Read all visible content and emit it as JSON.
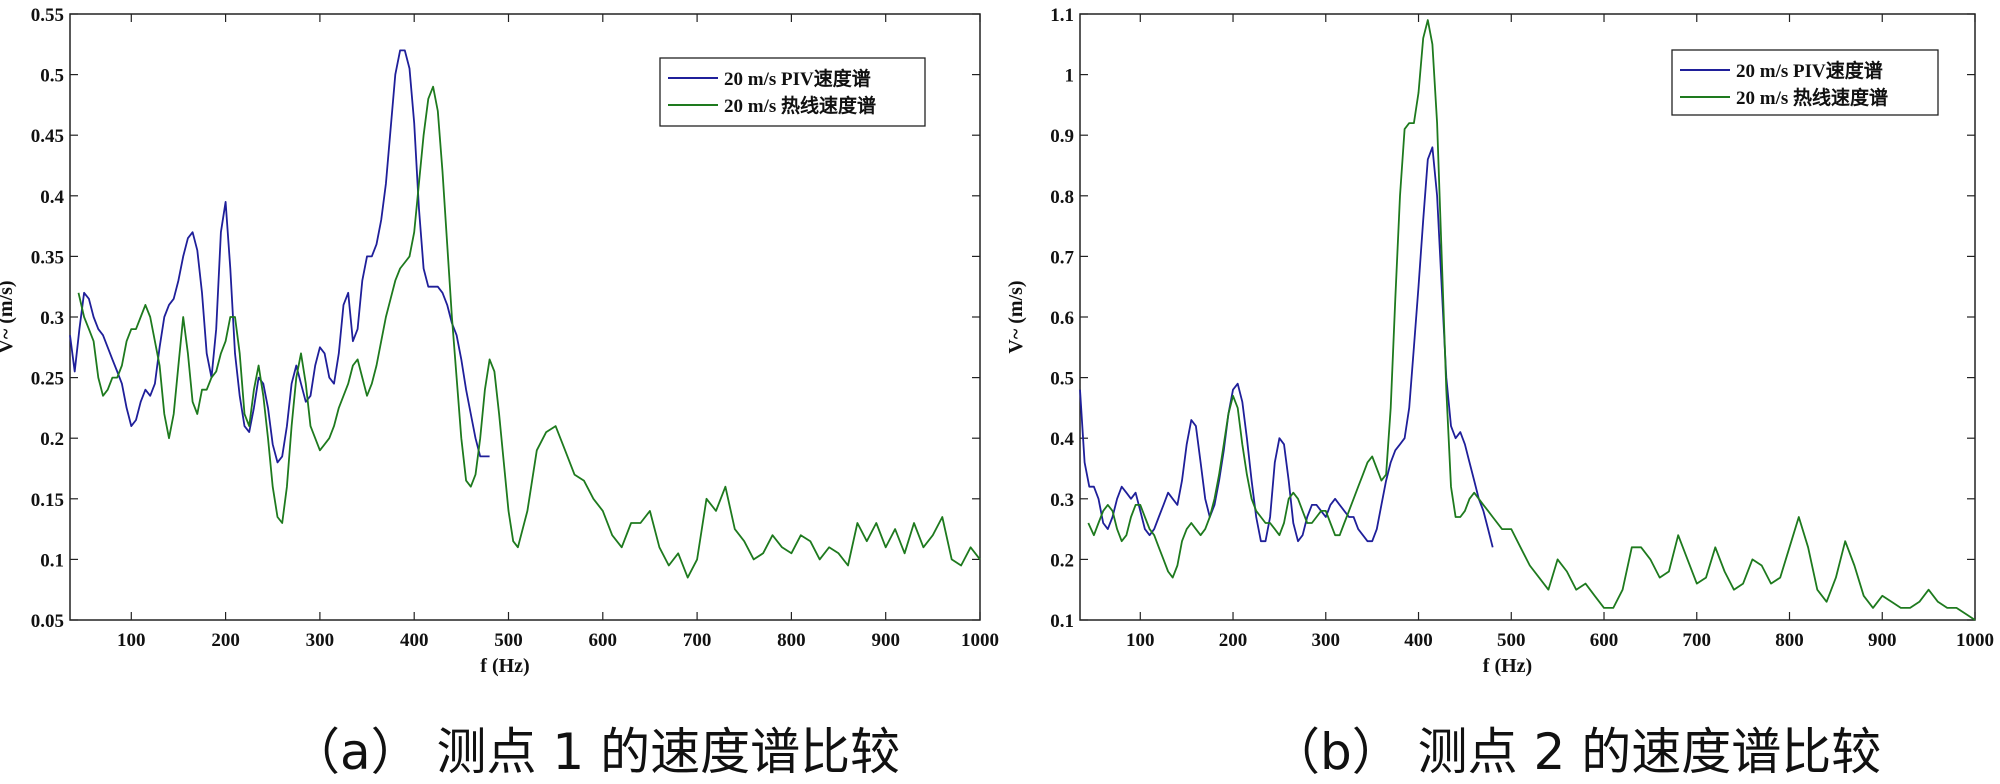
{
  "chart_data": [
    {
      "type": "line",
      "xlabel": "f (Hz)",
      "ylabel": "V~ (m/s)",
      "xlim": [
        35,
        1000
      ],
      "ylim": [
        0.05,
        0.55
      ],
      "xticks": [
        100,
        200,
        300,
        400,
        500,
        600,
        700,
        800,
        900,
        1000
      ],
      "yticks": [
        0.05,
        0.1,
        0.15,
        0.2,
        0.25,
        0.3,
        0.35,
        0.4,
        0.45,
        0.5,
        0.55
      ],
      "legend_position": "top-right",
      "caption": "（a） 测点 1 的速度谱比较",
      "series": [
        {
          "name": "20 m/s PIV速度谱",
          "color": "#1f1f9a",
          "x": [
            35,
            40,
            45,
            50,
            55,
            60,
            65,
            70,
            75,
            80,
            85,
            90,
            95,
            100,
            105,
            110,
            115,
            120,
            125,
            130,
            135,
            140,
            145,
            150,
            155,
            160,
            165,
            170,
            175,
            180,
            185,
            190,
            195,
            200,
            205,
            210,
            215,
            220,
            225,
            230,
            235,
            240,
            245,
            250,
            255,
            260,
            265,
            270,
            275,
            280,
            285,
            290,
            295,
            300,
            305,
            310,
            315,
            320,
            325,
            330,
            335,
            340,
            345,
            350,
            355,
            360,
            365,
            370,
            375,
            380,
            385,
            390,
            395,
            400,
            405,
            410,
            415,
            420,
            425,
            430,
            435,
            440,
            445,
            450,
            455,
            460,
            465,
            470,
            475,
            480
          ],
          "y": [
            0.285,
            0.255,
            0.29,
            0.32,
            0.315,
            0.3,
            0.29,
            0.285,
            0.275,
            0.265,
            0.255,
            0.245,
            0.225,
            0.21,
            0.215,
            0.23,
            0.24,
            0.235,
            0.245,
            0.275,
            0.3,
            0.31,
            0.315,
            0.33,
            0.35,
            0.365,
            0.37,
            0.355,
            0.32,
            0.27,
            0.25,
            0.29,
            0.37,
            0.395,
            0.34,
            0.27,
            0.235,
            0.21,
            0.205,
            0.225,
            0.25,
            0.245,
            0.225,
            0.195,
            0.18,
            0.185,
            0.21,
            0.245,
            0.26,
            0.245,
            0.23,
            0.235,
            0.26,
            0.275,
            0.27,
            0.25,
            0.245,
            0.27,
            0.31,
            0.32,
            0.28,
            0.29,
            0.33,
            0.35,
            0.35,
            0.36,
            0.38,
            0.41,
            0.455,
            0.5,
            0.52,
            0.52,
            0.505,
            0.46,
            0.39,
            0.34,
            0.325,
            0.325,
            0.325,
            0.32,
            0.31,
            0.295,
            0.285,
            0.265,
            0.24,
            0.22,
            0.2,
            0.185,
            0.185,
            0.185
          ]
        },
        {
          "name": "20 m/s 热线速度谱",
          "color": "#1e7a1e",
          "x": [
            44,
            50,
            55,
            60,
            65,
            70,
            75,
            80,
            85,
            90,
            95,
            100,
            105,
            110,
            115,
            120,
            125,
            130,
            135,
            140,
            145,
            150,
            155,
            160,
            165,
            170,
            175,
            180,
            185,
            190,
            195,
            200,
            205,
            210,
            215,
            220,
            225,
            230,
            235,
            240,
            245,
            250,
            255,
            260,
            265,
            270,
            275,
            280,
            285,
            290,
            295,
            300,
            305,
            310,
            315,
            320,
            325,
            330,
            335,
            340,
            345,
            350,
            355,
            360,
            365,
            370,
            375,
            380,
            385,
            390,
            395,
            400,
            405,
            410,
            415,
            420,
            425,
            430,
            435,
            440,
            445,
            450,
            455,
            460,
            465,
            470,
            475,
            480,
            485,
            490,
            495,
            500,
            505,
            510,
            520,
            530,
            540,
            550,
            560,
            570,
            580,
            590,
            600,
            610,
            620,
            630,
            640,
            650,
            660,
            670,
            680,
            690,
            700,
            710,
            720,
            730,
            740,
            750,
            760,
            770,
            780,
            790,
            800,
            810,
            820,
            830,
            840,
            850,
            860,
            870,
            880,
            890,
            900,
            910,
            920,
            930,
            940,
            950,
            960,
            970,
            980,
            990,
            1000
          ],
          "y": [
            0.32,
            0.3,
            0.29,
            0.28,
            0.25,
            0.235,
            0.24,
            0.25,
            0.25,
            0.26,
            0.28,
            0.29,
            0.29,
            0.3,
            0.31,
            0.3,
            0.28,
            0.26,
            0.22,
            0.2,
            0.22,
            0.26,
            0.3,
            0.27,
            0.23,
            0.22,
            0.24,
            0.24,
            0.25,
            0.255,
            0.27,
            0.28,
            0.3,
            0.3,
            0.27,
            0.22,
            0.21,
            0.24,
            0.26,
            0.235,
            0.2,
            0.16,
            0.135,
            0.13,
            0.16,
            0.21,
            0.25,
            0.27,
            0.245,
            0.21,
            0.2,
            0.19,
            0.195,
            0.2,
            0.21,
            0.225,
            0.235,
            0.245,
            0.26,
            0.265,
            0.25,
            0.235,
            0.245,
            0.26,
            0.28,
            0.3,
            0.315,
            0.33,
            0.34,
            0.345,
            0.35,
            0.37,
            0.41,
            0.45,
            0.48,
            0.49,
            0.47,
            0.42,
            0.36,
            0.3,
            0.25,
            0.2,
            0.165,
            0.16,
            0.17,
            0.2,
            0.24,
            0.265,
            0.255,
            0.22,
            0.18,
            0.14,
            0.115,
            0.11,
            0.14,
            0.19,
            0.205,
            0.21,
            0.19,
            0.17,
            0.165,
            0.15,
            0.14,
            0.12,
            0.11,
            0.13,
            0.13,
            0.14,
            0.11,
            0.095,
            0.105,
            0.085,
            0.1,
            0.15,
            0.14,
            0.16,
            0.125,
            0.115,
            0.1,
            0.105,
            0.12,
            0.11,
            0.105,
            0.12,
            0.115,
            0.1,
            0.11,
            0.105,
            0.095,
            0.13,
            0.115,
            0.13,
            0.11,
            0.125,
            0.105,
            0.13,
            0.11,
            0.12,
            0.135,
            0.1,
            0.095,
            0.11,
            0.1
          ]
        }
      ]
    },
    {
      "type": "line",
      "xlabel": "f (Hz)",
      "ylabel": "V~ (m/s)",
      "xlim": [
        35,
        1000
      ],
      "ylim": [
        0.1,
        1.1
      ],
      "xticks": [
        100,
        200,
        300,
        400,
        500,
        600,
        700,
        800,
        900,
        1000
      ],
      "yticks": [
        0.1,
        0.2,
        0.3,
        0.4,
        0.5,
        0.6,
        0.7,
        0.8,
        0.9,
        1,
        1.1
      ],
      "legend_position": "top-right",
      "caption": "（b） 测点 2 的速度谱比较",
      "series": [
        {
          "name": "20 m/s PIV速度谱",
          "color": "#1f1f9a",
          "x": [
            35,
            40,
            45,
            50,
            55,
            60,
            65,
            70,
            75,
            80,
            85,
            90,
            95,
            100,
            105,
            110,
            115,
            120,
            125,
            130,
            135,
            140,
            145,
            150,
            155,
            160,
            165,
            170,
            175,
            180,
            185,
            190,
            195,
            200,
            205,
            210,
            215,
            220,
            225,
            230,
            235,
            240,
            245,
            250,
            255,
            260,
            265,
            270,
            275,
            280,
            285,
            290,
            295,
            300,
            305,
            310,
            315,
            320,
            325,
            330,
            335,
            340,
            345,
            350,
            355,
            360,
            365,
            370,
            375,
            380,
            385,
            390,
            395,
            400,
            405,
            410,
            415,
            420,
            425,
            430,
            435,
            440,
            445,
            450,
            455,
            460,
            465,
            470,
            475,
            480
          ],
          "y": [
            0.48,
            0.36,
            0.32,
            0.32,
            0.3,
            0.26,
            0.25,
            0.27,
            0.3,
            0.32,
            0.31,
            0.3,
            0.31,
            0.28,
            0.25,
            0.24,
            0.25,
            0.27,
            0.29,
            0.31,
            0.3,
            0.29,
            0.33,
            0.39,
            0.43,
            0.42,
            0.36,
            0.3,
            0.27,
            0.29,
            0.33,
            0.38,
            0.44,
            0.48,
            0.49,
            0.46,
            0.4,
            0.33,
            0.27,
            0.23,
            0.23,
            0.27,
            0.36,
            0.4,
            0.39,
            0.33,
            0.26,
            0.23,
            0.24,
            0.27,
            0.29,
            0.29,
            0.28,
            0.27,
            0.29,
            0.3,
            0.29,
            0.28,
            0.27,
            0.27,
            0.25,
            0.24,
            0.23,
            0.23,
            0.25,
            0.29,
            0.33,
            0.36,
            0.38,
            0.39,
            0.4,
            0.45,
            0.55,
            0.65,
            0.76,
            0.86,
            0.88,
            0.8,
            0.65,
            0.5,
            0.42,
            0.4,
            0.41,
            0.39,
            0.36,
            0.33,
            0.3,
            0.28,
            0.25,
            0.22
          ]
        },
        {
          "name": "20 m/s 热线速度谱",
          "color": "#1e7a1e",
          "x": [
            44,
            50,
            55,
            60,
            65,
            70,
            75,
            80,
            85,
            90,
            95,
            100,
            105,
            110,
            115,
            120,
            125,
            130,
            135,
            140,
            145,
            150,
            155,
            160,
            165,
            170,
            175,
            180,
            185,
            190,
            195,
            200,
            205,
            210,
            215,
            220,
            225,
            230,
            235,
            240,
            245,
            250,
            255,
            260,
            265,
            270,
            275,
            280,
            285,
            290,
            295,
            300,
            305,
            310,
            315,
            320,
            325,
            330,
            335,
            340,
            345,
            350,
            355,
            360,
            365,
            370,
            375,
            380,
            385,
            390,
            395,
            400,
            405,
            410,
            415,
            420,
            425,
            430,
            435,
            440,
            445,
            450,
            455,
            460,
            465,
            470,
            475,
            480,
            490,
            500,
            510,
            520,
            530,
            540,
            550,
            560,
            570,
            580,
            590,
            600,
            610,
            620,
            630,
            640,
            650,
            660,
            670,
            680,
            690,
            700,
            710,
            720,
            730,
            740,
            750,
            760,
            770,
            780,
            790,
            800,
            810,
            820,
            830,
            840,
            850,
            860,
            870,
            880,
            890,
            900,
            910,
            920,
            930,
            940,
            950,
            960,
            970,
            980,
            990,
            1000
          ],
          "y": [
            0.26,
            0.24,
            0.26,
            0.28,
            0.29,
            0.28,
            0.25,
            0.23,
            0.24,
            0.27,
            0.29,
            0.29,
            0.27,
            0.25,
            0.24,
            0.22,
            0.2,
            0.18,
            0.17,
            0.19,
            0.23,
            0.25,
            0.26,
            0.25,
            0.24,
            0.25,
            0.27,
            0.3,
            0.34,
            0.39,
            0.44,
            0.47,
            0.45,
            0.39,
            0.34,
            0.3,
            0.28,
            0.27,
            0.26,
            0.26,
            0.25,
            0.24,
            0.26,
            0.3,
            0.31,
            0.3,
            0.28,
            0.26,
            0.26,
            0.27,
            0.28,
            0.28,
            0.26,
            0.24,
            0.24,
            0.26,
            0.28,
            0.3,
            0.32,
            0.34,
            0.36,
            0.37,
            0.35,
            0.33,
            0.34,
            0.45,
            0.63,
            0.8,
            0.91,
            0.92,
            0.92,
            0.97,
            1.06,
            1.09,
            1.05,
            0.92,
            0.7,
            0.48,
            0.32,
            0.27,
            0.27,
            0.28,
            0.3,
            0.31,
            0.3,
            0.29,
            0.28,
            0.27,
            0.25,
            0.25,
            0.22,
            0.19,
            0.17,
            0.15,
            0.2,
            0.18,
            0.15,
            0.16,
            0.14,
            0.12,
            0.12,
            0.15,
            0.22,
            0.22,
            0.2,
            0.17,
            0.18,
            0.24,
            0.2,
            0.16,
            0.17,
            0.22,
            0.18,
            0.15,
            0.16,
            0.2,
            0.19,
            0.16,
            0.17,
            0.22,
            0.27,
            0.22,
            0.15,
            0.13,
            0.17,
            0.23,
            0.19,
            0.14,
            0.12,
            0.14,
            0.13,
            0.12,
            0.12,
            0.13,
            0.15,
            0.13,
            0.12,
            0.12,
            0.11,
            0.1
          ]
        }
      ]
    }
  ]
}
